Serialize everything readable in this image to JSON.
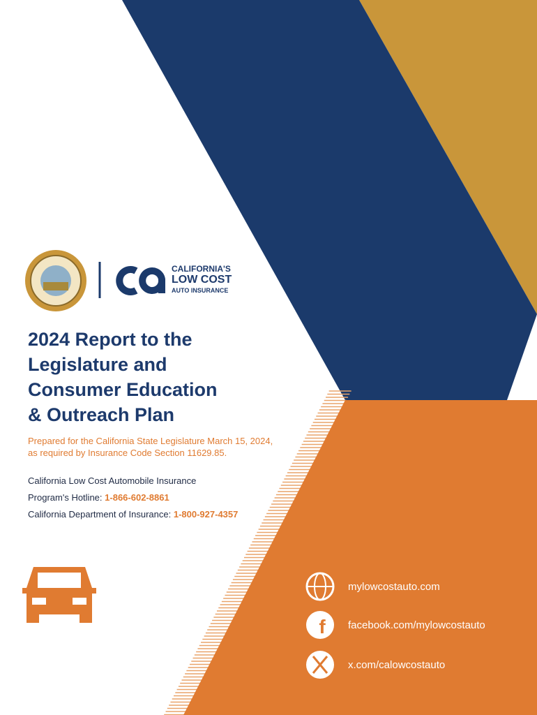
{
  "logo": {
    "line1": "CALIFORNIA'S",
    "line2": "LOW COST",
    "line3": "AUTO INSURANCE"
  },
  "title": [
    "2024 Report to the",
    "Legislature and",
    "Consumer Education",
    "& Outreach Plan"
  ],
  "subtitle": [
    "Prepared for the California State Legislature March 15, 2024,",
    "as required by Insurance Code Section 11629.85."
  ],
  "contact": {
    "program": "California Low Cost Automobile Insurance",
    "hotline_label": "Program's Hotline:",
    "hotline": "1-866-602-8861",
    "department_label": "California Department of Insurance:",
    "department": "1-800-927-4357"
  },
  "links": [
    "mylowcostauto.com",
    "facebook.com/mylowcostauto",
    "x.com/calowcostauto"
  ]
}
